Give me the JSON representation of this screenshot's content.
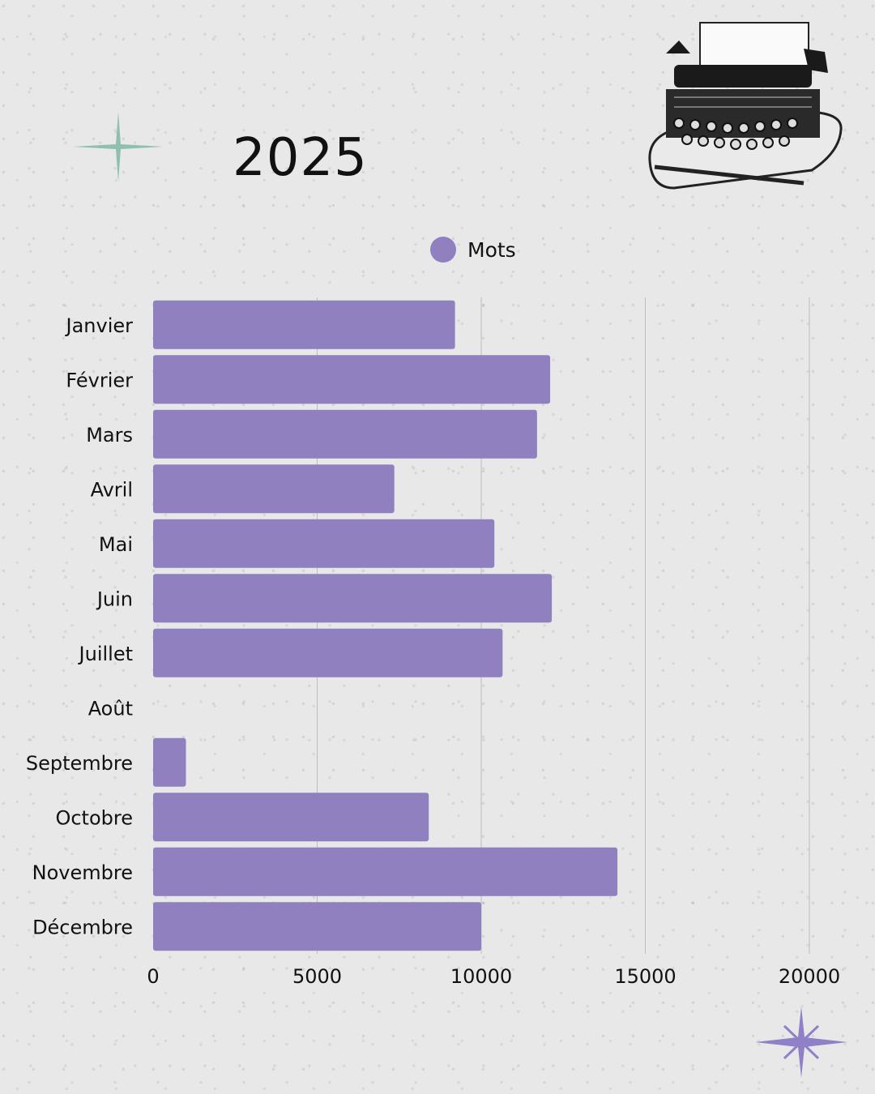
{
  "colors": {
    "bar": "#9080c0",
    "grid": "#bdbdbd",
    "sparkle_green": "#8fbfb0",
    "sparkle_purple": "#9080c8"
  },
  "icons": [
    "sparkle-icon",
    "typewriter-icon"
  ],
  "chart_data": {
    "type": "bar",
    "orientation": "horizontal",
    "title": "2025",
    "categories": [
      "Janvier",
      "Février",
      "Mars",
      "Avril",
      "Mai",
      "Juin",
      "Juillet",
      "Août",
      "Septembre",
      "Octobre",
      "Novembre",
      "Décembre"
    ],
    "series": [
      {
        "name": "Mots",
        "values": [
          9200,
          12100,
          11700,
          7350,
          10400,
          12150,
          10650,
          0,
          1000,
          8400,
          14150,
          10000
        ]
      }
    ],
    "xlim": [
      0,
      20000
    ],
    "xticks": [
      0,
      5000,
      10000,
      15000,
      20000
    ],
    "xlabel": "",
    "ylabel": "",
    "grid": true,
    "legend": "top-center"
  }
}
